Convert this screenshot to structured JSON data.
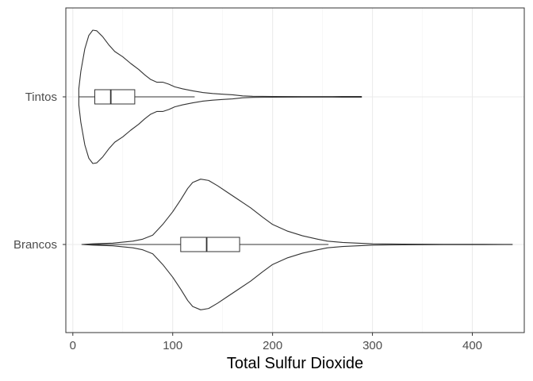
{
  "chart_data": {
    "type": "violin",
    "xlabel": "Total Sulfur Dioxide",
    "ylabel": "",
    "xlim": [
      -7,
      452
    ],
    "x_ticks": [
      0,
      100,
      200,
      300,
      400
    ],
    "grid": true,
    "categories": [
      "Tintos",
      "Brancos"
    ],
    "series": [
      {
        "name": "Tintos",
        "min": 6,
        "max": 289,
        "box": {
          "q1": 22,
          "median": 38,
          "q3": 62,
          "whisker_low": 6,
          "whisker_high": 122
        },
        "density": [
          [
            6,
            0.12
          ],
          [
            8,
            0.38
          ],
          [
            12,
            0.72
          ],
          [
            16,
            0.92
          ],
          [
            20,
            1.0
          ],
          [
            24,
            0.99
          ],
          [
            30,
            0.9
          ],
          [
            36,
            0.78
          ],
          [
            42,
            0.68
          ],
          [
            50,
            0.6
          ],
          [
            58,
            0.5
          ],
          [
            66,
            0.41
          ],
          [
            72,
            0.33
          ],
          [
            78,
            0.26
          ],
          [
            84,
            0.22
          ],
          [
            90,
            0.22
          ],
          [
            96,
            0.19
          ],
          [
            102,
            0.15
          ],
          [
            110,
            0.12
          ],
          [
            120,
            0.09
          ],
          [
            130,
            0.065
          ],
          [
            140,
            0.05
          ],
          [
            150,
            0.04
          ],
          [
            160,
            0.03
          ],
          [
            170,
            0.014
          ],
          [
            180,
            0.008
          ],
          [
            200,
            0.005
          ],
          [
            230,
            0.004
          ],
          [
            260,
            0.004
          ],
          [
            270,
            0.005
          ],
          [
            280,
            0.006
          ],
          [
            289,
            0.006
          ]
        ]
      },
      {
        "name": "Brancos",
        "min": 9,
        "max": 440,
        "box": {
          "q1": 108,
          "median": 134,
          "q3": 167,
          "whisker_low": 9,
          "whisker_high": 256
        },
        "density": [
          [
            9,
            0.0
          ],
          [
            20,
            0.01
          ],
          [
            40,
            0.02
          ],
          [
            60,
            0.05
          ],
          [
            70,
            0.08
          ],
          [
            80,
            0.14
          ],
          [
            90,
            0.3
          ],
          [
            100,
            0.49
          ],
          [
            108,
            0.67
          ],
          [
            115,
            0.84
          ],
          [
            120,
            0.93
          ],
          [
            128,
            0.98
          ],
          [
            136,
            0.96
          ],
          [
            145,
            0.88
          ],
          [
            155,
            0.78
          ],
          [
            165,
            0.68
          ],
          [
            178,
            0.55
          ],
          [
            190,
            0.41
          ],
          [
            200,
            0.3
          ],
          [
            215,
            0.2
          ],
          [
            230,
            0.13
          ],
          [
            245,
            0.08
          ],
          [
            255,
            0.05
          ],
          [
            270,
            0.03
          ],
          [
            300,
            0.01
          ],
          [
            330,
            0.005
          ],
          [
            370,
            0.003
          ],
          [
            410,
            0.002
          ],
          [
            440,
            0.001
          ]
        ]
      }
    ]
  }
}
